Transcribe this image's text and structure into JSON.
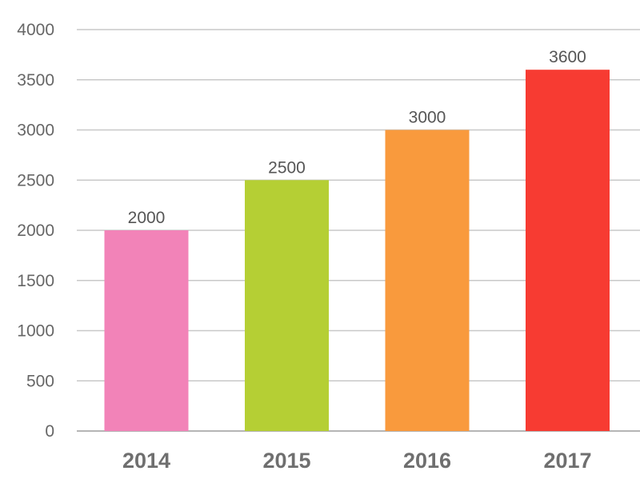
{
  "chart_data": {
    "type": "bar",
    "categories": [
      "2014",
      "2015",
      "2016",
      "2017"
    ],
    "values": [
      2000,
      2500,
      3000,
      3600
    ],
    "data_labels": [
      "2000",
      "2500",
      "3000",
      "3600"
    ],
    "bar_colors": [
      "#f283b8",
      "#b5cf34",
      "#f99a3d",
      "#f73b32"
    ],
    "ylim": [
      0,
      4000
    ],
    "yticks": [
      0,
      500,
      1000,
      1500,
      2000,
      2500,
      3000,
      3500,
      4000
    ],
    "ytick_labels": [
      "0",
      "500",
      "1000",
      "1500",
      "2000",
      "2500",
      "3000",
      "3500",
      "4000"
    ],
    "grid": true,
    "title": "",
    "xlabel": "",
    "ylabel": ""
  }
}
